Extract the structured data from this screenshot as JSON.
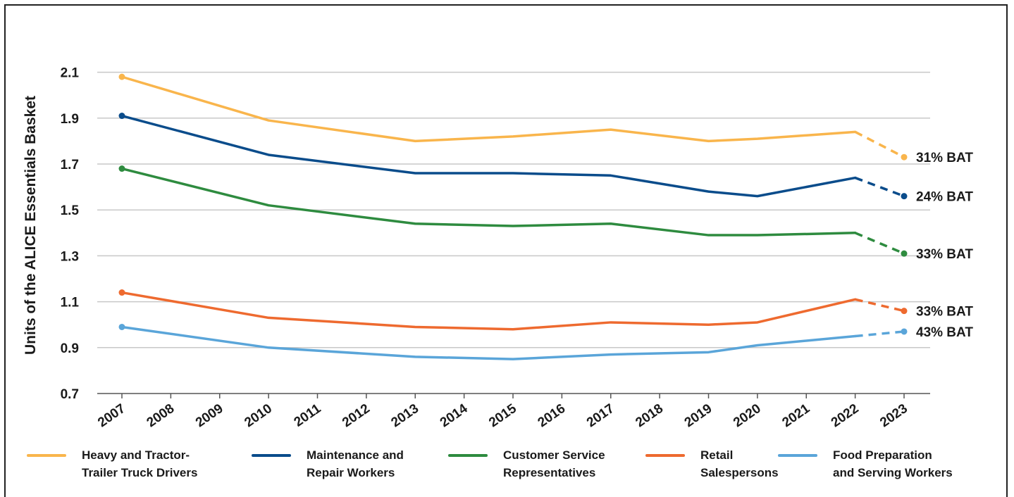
{
  "chart_data": {
    "type": "line",
    "ylabel": "Units of the ALICE Essentials Basket",
    "xlabel": "",
    "ylim": [
      0.7,
      2.2
    ],
    "yticks": [
      "0.7",
      "0.9",
      "1.1",
      "1.3",
      "1.5",
      "1.7",
      "1.9",
      "2.1"
    ],
    "categories": [
      "2007",
      "2008",
      "2009",
      "2010",
      "2011",
      "2012",
      "2013",
      "2014",
      "2015",
      "2016",
      "2017",
      "2018",
      "2019",
      "2020",
      "2021",
      "2022",
      "2023"
    ],
    "grid": true,
    "legend_position": "bottom",
    "series": [
      {
        "name": "Heavy and Tractor-\nTrailer Truck Drivers",
        "color": "#F9B54C",
        "x": [
          "2007",
          "2010",
          "2013",
          "2015",
          "2017",
          "2019",
          "2020",
          "2022",
          "2023"
        ],
        "values": [
          2.08,
          1.89,
          1.8,
          1.82,
          1.85,
          1.8,
          1.81,
          1.84,
          1.73
        ],
        "projected_from": "2022",
        "end_label": "31% BAT"
      },
      {
        "name": "Maintenance and\nRepair Workers",
        "color": "#0A4C8B",
        "x": [
          "2007",
          "2010",
          "2013",
          "2015",
          "2017",
          "2019",
          "2020",
          "2022",
          "2023"
        ],
        "values": [
          1.91,
          1.74,
          1.66,
          1.66,
          1.65,
          1.58,
          1.56,
          1.64,
          1.56
        ],
        "projected_from": "2022",
        "end_label": "24% BAT"
      },
      {
        "name": "Customer Service\nRepresentatives",
        "color": "#2E8B3F",
        "x": [
          "2007",
          "2010",
          "2013",
          "2015",
          "2017",
          "2019",
          "2020",
          "2022",
          "2023"
        ],
        "values": [
          1.68,
          1.52,
          1.44,
          1.43,
          1.44,
          1.39,
          1.39,
          1.4,
          1.31
        ],
        "projected_from": "2022",
        "end_label": "33% BAT"
      },
      {
        "name": "Retail\nSalespersons",
        "color": "#EE6A2F",
        "x": [
          "2007",
          "2010",
          "2013",
          "2015",
          "2017",
          "2019",
          "2020",
          "2022",
          "2023"
        ],
        "values": [
          1.14,
          1.03,
          0.99,
          0.98,
          1.01,
          1.0,
          1.01,
          1.11,
          1.06
        ],
        "projected_from": "2022",
        "end_label": "33% BAT"
      },
      {
        "name": "Food Preparation\nand Serving Workers",
        "color": "#5AA5D9",
        "x": [
          "2007",
          "2010",
          "2013",
          "2015",
          "2017",
          "2019",
          "2020",
          "2022",
          "2023"
        ],
        "values": [
          0.99,
          0.9,
          0.86,
          0.85,
          0.87,
          0.88,
          0.91,
          0.95,
          0.97
        ],
        "projected_from": "2022",
        "end_label": "43% BAT"
      }
    ]
  }
}
